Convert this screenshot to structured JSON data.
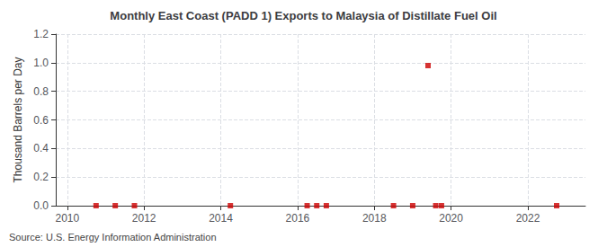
{
  "chart_data": {
    "type": "scatter",
    "title": "Monthly East Coast (PADD 1) Exports to Malaysia of Distillate Fuel Oil",
    "ylabel": "Thousand Barrels per Day",
    "annotation": "Source: U.S. Energy Information Administration",
    "x": [
      2010.75,
      2011.25,
      2011.75,
      2014.25,
      2016.25,
      2016.5,
      2016.75,
      2018.5,
      2019.0,
      2019.4,
      2019.6,
      2019.75,
      2022.75
    ],
    "values": [
      0.0,
      0.0,
      0.0,
      0.0,
      0.0,
      0.0,
      0.0,
      0.0,
      0.0,
      0.98,
      0.0,
      0.0,
      0.0
    ],
    "color": "#cc0000",
    "marker": "square",
    "xlim": [
      2009.7,
      2023.5
    ],
    "xticks": [
      2010,
      2012,
      2014,
      2016,
      2018,
      2020,
      2022
    ],
    "ylim": [
      0.0,
      1.2
    ],
    "yticks": [
      {
        "value": 0.0,
        "label": "0.0"
      },
      0.2,
      0.4,
      0.6,
      0.8,
      {
        "value": 1.0,
        "label": "1.0"
      },
      1.2
    ],
    "grid": true
  }
}
